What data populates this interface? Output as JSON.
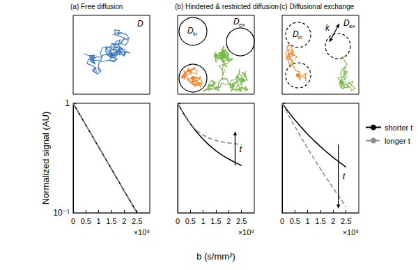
{
  "chart_data": [
    {
      "type": "line",
      "ylabel": "Normalized signal (AU)",
      "x": [
        0,
        0.25,
        0.5,
        0.75,
        1,
        1.25,
        1.5,
        1.75,
        2,
        2.25,
        2.5
      ],
      "series": [
        {
          "name": "shorter t",
          "color": "#000000",
          "line_style": "solid",
          "values": [
            1,
            0.794,
            0.631,
            0.501,
            0.398,
            0.316,
            0.251,
            0.2,
            0.158,
            0.126,
            0.1
          ]
        },
        {
          "name": "longer t",
          "color": "#8c8c8c",
          "line_style": "dashed",
          "values": [
            1,
            0.794,
            0.631,
            0.501,
            0.398,
            0.316,
            0.251,
            0.2,
            0.158,
            0.126,
            0.1
          ]
        }
      ],
      "xlim": [
        0,
        3
      ],
      "xticks": [
        0,
        0.5,
        1,
        1.5,
        2,
        2.5
      ],
      "x_multiplier": "×10⁹",
      "ylim": [
        0.1,
        1
      ],
      "yticks": [
        {
          "value": 0.1,
          "label": "10⁻¹"
        },
        1
      ],
      "log": "y"
    },
    {
      "type": "line",
      "xlabel": "b (s/mm²)",
      "x": [
        0,
        0.25,
        0.5,
        0.75,
        1,
        1.25,
        1.5,
        1.75,
        2,
        2.25,
        2.5
      ],
      "series": [
        {
          "name": "shorter t",
          "color": "#000000",
          "line_style": "solid",
          "values": [
            1,
            0.794,
            0.648,
            0.544,
            0.468,
            0.411,
            0.368,
            0.335,
            0.309,
            0.288,
            0.27
          ]
        },
        {
          "name": "longer t",
          "color": "#8c8c8c",
          "line_style": "dashed",
          "values": [
            1,
            0.781,
            0.645,
            0.563,
            0.511,
            0.478,
            0.457,
            0.444,
            0.434,
            0.427,
            0.42
          ]
        }
      ],
      "xlim": [
        0,
        3
      ],
      "xticks": [
        0,
        0.5,
        1,
        1.5,
        2,
        2.5
      ],
      "x_multiplier": "×10⁹",
      "ylim": [
        0.1,
        1
      ],
      "yticks": [
        {
          "value": 0.1,
          "label": "10⁻¹"
        },
        1
      ],
      "log": "y",
      "tick_labels": "x",
      "annotations": [
        {
          "text": "t",
          "x": 2.25,
          "y_from": 0.27,
          "y_to": 0.55
        }
      ]
    },
    {
      "type": "line",
      "x": [
        0,
        0.25,
        0.5,
        0.75,
        1,
        1.25,
        1.5,
        1.75,
        2,
        2.25,
        2.5
      ],
      "series": [
        {
          "name": "shorter t",
          "color": "#000000",
          "line_style": "solid",
          "values": [
            1,
            0.834,
            0.704,
            0.602,
            0.521,
            0.456,
            0.402,
            0.357,
            0.319,
            0.289,
            0.261
          ]
        },
        {
          "name": "longer t",
          "color": "#8c8c8c",
          "line_style": "dashed",
          "values": [
            1,
            0.779,
            0.612,
            0.485,
            0.387,
            0.311,
            0.252,
            0.205,
            0.168,
            0.138,
            0.113
          ]
        }
      ],
      "xlim": [
        0,
        3
      ],
      "xticks": [
        0,
        0.5,
        1,
        1.5,
        2,
        2.5
      ],
      "x_multiplier": "×10⁹",
      "ylim": [
        0.1,
        1
      ],
      "yticks": [
        {
          "value": 0.1,
          "label": "10⁻¹"
        },
        1
      ],
      "log": "y",
      "tick_labels": "x",
      "legend": "right",
      "annotations": [
        {
          "text": "t",
          "x": 2.2,
          "y_from": 0.42,
          "y_to": 0.11
        }
      ]
    }
  ],
  "diagrams": [
    {
      "title": "(a) Free diffusion",
      "labels": [
        {
          "text": "D"
        }
      ]
    },
    {
      "title": "(b) Hindered & restricted diffusion",
      "labels": [
        {
          "text": "D",
          "subscript": "in"
        },
        {
          "text": "D",
          "subscript": "ex"
        }
      ]
    },
    {
      "title": "(c) Diffusional exchange",
      "labels": [
        {
          "text": "D",
          "subscript": "in"
        },
        {
          "text": "k"
        },
        {
          "text": "D",
          "subscript": "ex"
        }
      ]
    }
  ]
}
